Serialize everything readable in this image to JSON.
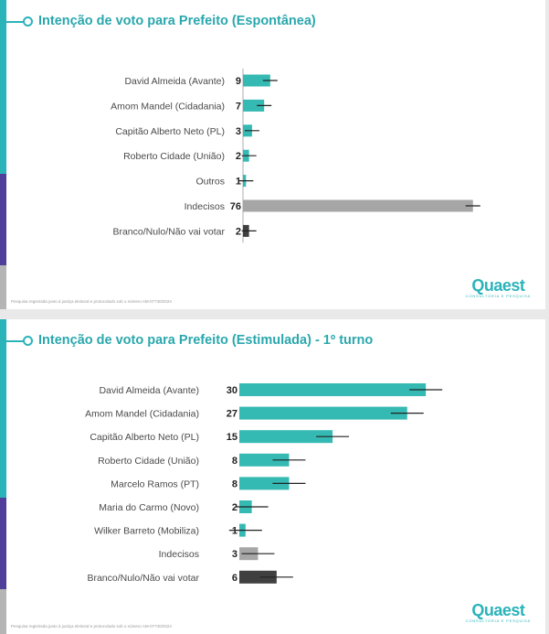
{
  "colors": {
    "teal": "#35b9b3",
    "gray": "#a6a6a6",
    "dark": "#404040",
    "title": "#2aa7ad",
    "edge_teal": "#2bb3ba",
    "edge_purple": "#4f3f9a",
    "edge_gray": "#b5b5b5"
  },
  "brand": {
    "name": "Quaest",
    "tagline": "CONSULTORIA E PESQUISA"
  },
  "chart_data": [
    {
      "type": "bar",
      "orientation": "horizontal",
      "title": "Intenção de voto para Prefeito (Espontânea)",
      "footnote": "Pesquisa registrada junto à justiça eleitoral e protocolado sob o número AM-07730/2024",
      "xlim": [
        0,
        80
      ],
      "error_bars": true,
      "bars": [
        {
          "label": "David Almeida (Avante)",
          "value": 9,
          "color": "teal"
        },
        {
          "label": "Amom Mandel (Cidadania)",
          "value": 7,
          "color": "teal"
        },
        {
          "label": "Capitão Alberto Neto (PL)",
          "value": 3,
          "color": "teal"
        },
        {
          "label": "Roberto Cidade (União)",
          "value": 2,
          "color": "teal"
        },
        {
          "label": "Outros",
          "value": 1,
          "color": "teal"
        },
        {
          "label": "Indecisos",
          "value": 76,
          "color": "gray"
        },
        {
          "label": "Branco/Nulo/Não vai votar",
          "value": 2,
          "color": "dark"
        }
      ]
    },
    {
      "type": "bar",
      "orientation": "horizontal",
      "title": "Intenção de voto para Prefeito (Estimulada) - 1º turno",
      "footnote": "Pesquisa registrada junto à justiça eleitoral e protocolado sob o número AM-07730/2024",
      "xlim": [
        0,
        36
      ],
      "error_bars": true,
      "bars": [
        {
          "label": "David Almeida (Avante)",
          "value": 30,
          "color": "teal"
        },
        {
          "label": "Amom Mandel (Cidadania)",
          "value": 27,
          "color": "teal"
        },
        {
          "label": "Capitão Alberto Neto (PL)",
          "value": 15,
          "color": "teal"
        },
        {
          "label": "Roberto Cidade (União)",
          "value": 8,
          "color": "teal"
        },
        {
          "label": "Marcelo Ramos (PT)",
          "value": 8,
          "color": "teal"
        },
        {
          "label": "Maria do Carmo (Novo)",
          "value": 2,
          "color": "teal"
        },
        {
          "label": "Wilker Barreto (Mobiliza)",
          "value": 1,
          "color": "teal"
        },
        {
          "label": "Indecisos",
          "value": 3,
          "color": "gray"
        },
        {
          "label": "Branco/Nulo/Não vai votar",
          "value": 6,
          "color": "dark"
        }
      ]
    }
  ]
}
